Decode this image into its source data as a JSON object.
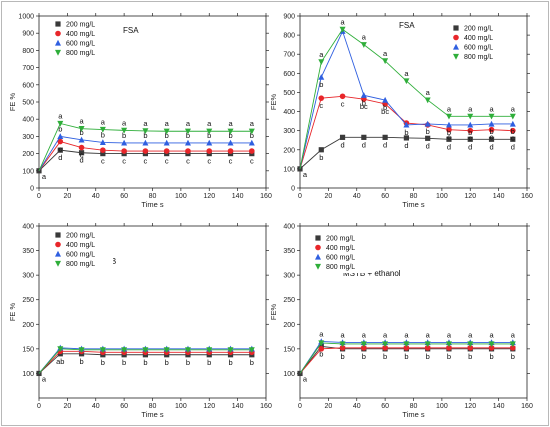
{
  "figure": {
    "border": true
  },
  "legend_labels": [
    "200 mg/L",
    "400 mg/L",
    "600 mg/L",
    "800 mg/L"
  ],
  "colors": {
    "200 mg/L": "#3a3a3a",
    "400 mg/L": "#e8262a",
    "600 mg/L": "#2f5fe0",
    "800 mg/L": "#2fae3a"
  },
  "chart_data": [
    {
      "type": "line",
      "title": "FSA",
      "xlabel": "Time s",
      "ylabel": "FE %",
      "xlim": [
        0,
        160
      ],
      "ylim": [
        0,
        1000
      ],
      "x_ticks": [
        0,
        20,
        40,
        60,
        80,
        100,
        120,
        140,
        160
      ],
      "y_ticks": [
        0,
        100,
        200,
        300,
        400,
        500,
        600,
        700,
        800,
        900,
        1000
      ],
      "legend_position": "top-left",
      "x": [
        0,
        15,
        30,
        45,
        60,
        75,
        90,
        105,
        120,
        135,
        150
      ],
      "series": [
        {
          "name": "200 mg/L",
          "marker": "square",
          "values": [
            100,
            220,
            205,
            200,
            200,
            200,
            200,
            200,
            200,
            200,
            200
          ],
          "letters": [
            "",
            "d",
            "d",
            "c",
            "c",
            "c",
            "c",
            "c",
            "c",
            "c",
            "c"
          ]
        },
        {
          "name": "400 mg/L",
          "marker": "circle",
          "values": [
            100,
            270,
            235,
            220,
            215,
            215,
            215,
            215,
            215,
            215,
            215
          ],
          "letters": [
            "",
            "c",
            "c",
            "",
            "",
            "",
            "",
            "",
            "",
            "",
            ""
          ]
        },
        {
          "name": "600 mg/L",
          "marker": "triangle",
          "values": [
            100,
            300,
            280,
            265,
            262,
            262,
            262,
            262,
            262,
            262,
            262
          ],
          "letters": [
            "",
            "b",
            "b",
            "b",
            "b",
            "b",
            "b",
            "b",
            "b",
            "b",
            "b"
          ]
        },
        {
          "name": "800 mg/L",
          "marker": "tri-down",
          "values": [
            100,
            375,
            345,
            340,
            335,
            332,
            330,
            330,
            330,
            330,
            330
          ],
          "letters": [
            "a",
            "a",
            "a",
            "a",
            "a",
            "a",
            "a",
            "a",
            "a",
            "a",
            "a"
          ]
        }
      ]
    },
    {
      "type": "line",
      "title": "FSA",
      "xlabel": "Time s",
      "ylabel": "FE%",
      "xlim": [
        0,
        160
      ],
      "ylim": [
        0,
        900
      ],
      "x_ticks": [
        0,
        20,
        40,
        60,
        80,
        100,
        120,
        140,
        160
      ],
      "y_ticks": [
        0,
        100,
        200,
        300,
        400,
        500,
        600,
        700,
        800,
        900
      ],
      "legend_position": "top-right",
      "x": [
        0,
        15,
        30,
        45,
        60,
        75,
        90,
        105,
        120,
        135,
        150
      ],
      "series": [
        {
          "name": "200 mg/L",
          "marker": "square",
          "values": [
            100,
            200,
            265,
            265,
            265,
            262,
            260,
            255,
            255,
            255,
            255
          ],
          "letters": [
            "a",
            "b",
            "d",
            "d",
            "d",
            "d",
            "d",
            "d",
            "d",
            "d",
            "d"
          ]
        },
        {
          "name": "400 mg/L",
          "marker": "circle",
          "values": [
            100,
            470,
            480,
            465,
            440,
            340,
            330,
            305,
            300,
            305,
            300
          ],
          "letters": [
            "",
            "c",
            "c",
            "bc",
            "bc",
            "",
            "",
            "c",
            "c",
            "c",
            "c"
          ]
        },
        {
          "name": "600 mg/L",
          "marker": "triangle",
          "values": [
            100,
            580,
            820,
            485,
            460,
            330,
            335,
            330,
            330,
            335,
            335
          ],
          "letters": [
            "",
            "b",
            "",
            "b",
            "b",
            "b",
            "b",
            "b",
            "b",
            "b",
            "b"
          ]
        },
        {
          "name": "800 mg/L",
          "marker": "tri-down",
          "values": [
            100,
            660,
            830,
            750,
            665,
            560,
            460,
            375,
            375,
            375,
            375
          ],
          "letters": [
            "",
            "a",
            "a",
            "a",
            "a",
            "a",
            "a",
            "a",
            "a",
            "a",
            "a"
          ]
        }
      ]
    },
    {
      "type": "line",
      "title": "MSTB",
      "xlabel": "Time s",
      "ylabel": "FE %",
      "xlim": [
        0,
        160
      ],
      "ylim": [
        50,
        400
      ],
      "x_ticks": [
        0,
        20,
        40,
        60,
        80,
        100,
        120,
        140,
        160
      ],
      "y_ticks": [
        100,
        150,
        200,
        250,
        300,
        350,
        400
      ],
      "legend_position": "top-left",
      "x": [
        0,
        15,
        30,
        45,
        60,
        75,
        90,
        105,
        120,
        135,
        150
      ],
      "series": [
        {
          "name": "200 mg/L",
          "marker": "square",
          "values": [
            100,
            140,
            140,
            138,
            138,
            138,
            138,
            138,
            138,
            138,
            138
          ],
          "letters": [
            "a",
            "ab",
            "b",
            "b",
            "b",
            "b",
            "b",
            "b",
            "b",
            "b",
            "b"
          ]
        },
        {
          "name": "400 mg/L",
          "marker": "circle",
          "values": [
            100,
            145,
            145,
            143,
            143,
            143,
            143,
            143,
            143,
            143,
            143
          ],
          "letters": [
            "",
            "",
            "",
            "",
            "",
            "",
            "",
            "",
            "",
            "",
            ""
          ]
        },
        {
          "name": "600 mg/L",
          "marker": "triangle",
          "values": [
            100,
            152,
            150,
            150,
            150,
            150,
            150,
            150,
            150,
            150,
            150
          ],
          "letters": [
            "",
            "",
            "",
            "",
            "",
            "",
            "",
            "",
            "",
            "",
            ""
          ]
        },
        {
          "name": "800 mg/L",
          "marker": "tri-down",
          "values": [
            100,
            150,
            148,
            148,
            148,
            148,
            148,
            148,
            148,
            148,
            148
          ],
          "letters": [
            "",
            "",
            "",
            "",
            "",
            "",
            "",
            "",
            "",
            "",
            ""
          ]
        }
      ]
    },
    {
      "type": "line",
      "title": "MSTB + ethanol",
      "xlabel": "Time s",
      "ylabel": "FE%",
      "xlim": [
        0,
        160
      ],
      "ylim": [
        50,
        400
      ],
      "x_ticks": [
        0,
        20,
        40,
        60,
        80,
        100,
        120,
        140,
        160
      ],
      "y_ticks": [
        100,
        150,
        200,
        250,
        300,
        350,
        400
      ],
      "legend_position": "top-left",
      "x": [
        0,
        15,
        30,
        45,
        60,
        75,
        90,
        105,
        120,
        135,
        150
      ],
      "series": [
        {
          "name": "200 mg/L",
          "marker": "square",
          "values": [
            100,
            155,
            150,
            150,
            150,
            150,
            150,
            150,
            150,
            150,
            150
          ],
          "letters": [
            "a",
            "b",
            "b",
            "b",
            "b",
            "b",
            "b",
            "b",
            "b",
            "b",
            "b"
          ]
        },
        {
          "name": "400 mg/L",
          "marker": "circle",
          "values": [
            100,
            150,
            152,
            152,
            152,
            152,
            152,
            152,
            152,
            152,
            152
          ],
          "letters": [
            "",
            "",
            "",
            "",
            "",
            "",
            "",
            "",
            "",
            "",
            ""
          ]
        },
        {
          "name": "600 mg/L",
          "marker": "triangle",
          "values": [
            100,
            165,
            163,
            163,
            163,
            163,
            163,
            163,
            163,
            163,
            163
          ],
          "letters": [
            "",
            "a",
            "a",
            "a",
            "a",
            "a",
            "a",
            "a",
            "a",
            "a",
            "a"
          ]
        },
        {
          "name": "800 mg/L",
          "marker": "tri-down",
          "values": [
            100,
            162,
            160,
            160,
            160,
            160,
            160,
            160,
            160,
            160,
            160
          ],
          "letters": [
            "",
            "",
            "",
            "",
            "",
            "",
            "",
            "",
            "",
            "",
            ""
          ]
        }
      ]
    }
  ]
}
